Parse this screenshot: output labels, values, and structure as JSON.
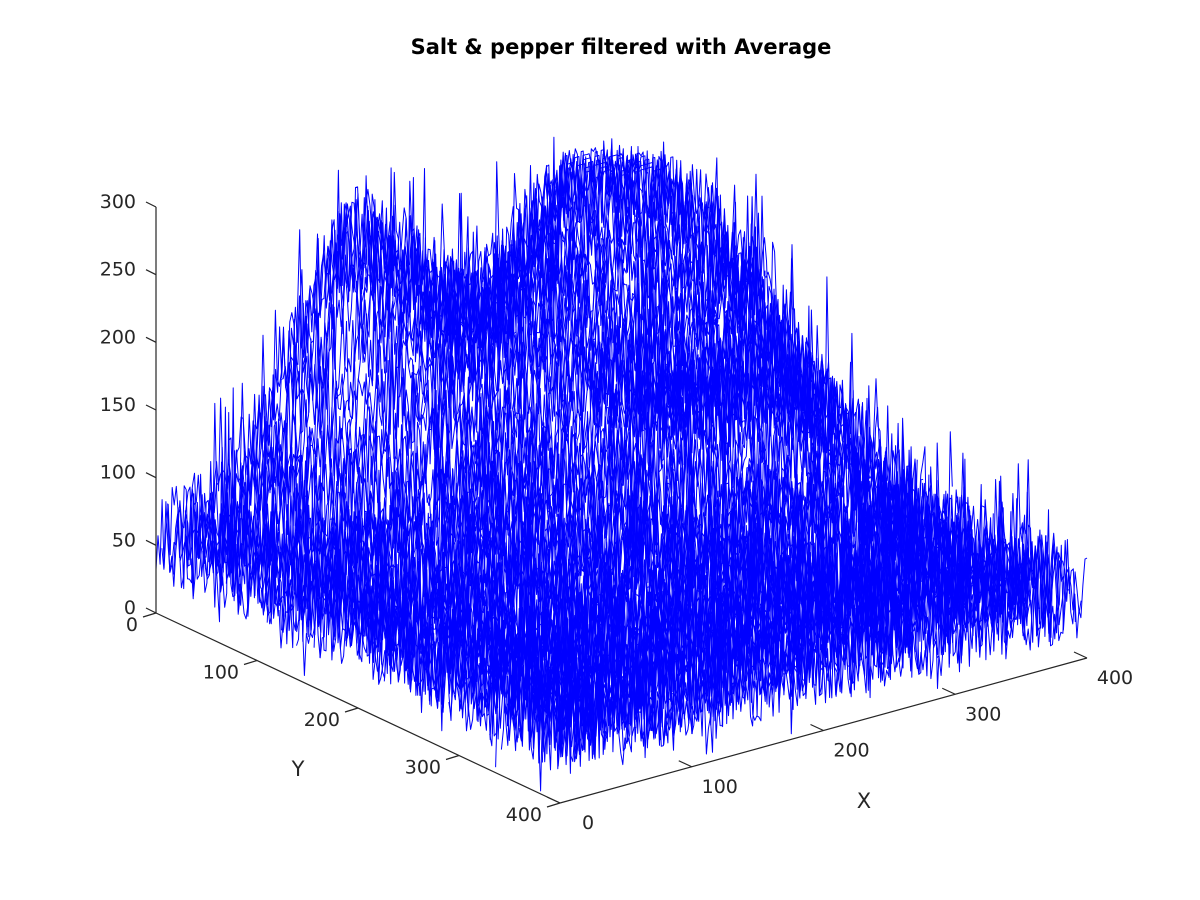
{
  "chart_data": {
    "type": "mesh3d",
    "title": "Salt & pepper filtered with Average",
    "xlabel": "X",
    "ylabel": "Y",
    "zlabel": "",
    "xlim": [
      0,
      400
    ],
    "ylim": [
      0,
      400
    ],
    "zlim": [
      0,
      300
    ],
    "xticks": [
      "0",
      "100",
      "200",
      "300",
      "400"
    ],
    "yticks": [
      "0",
      "100",
      "200",
      "300",
      "400"
    ],
    "zticks": [
      "0",
      "50",
      "100",
      "150",
      "200",
      "250",
      "300"
    ],
    "line_color": "#0000ff",
    "grid": false,
    "baseline_intensity": 50,
    "peaks": [
      {
        "x": 140,
        "y": 20,
        "z": 240
      },
      {
        "x": 270,
        "y": 75,
        "z": 250
      },
      {
        "x": 325,
        "y": 140,
        "z": 195
      }
    ]
  }
}
